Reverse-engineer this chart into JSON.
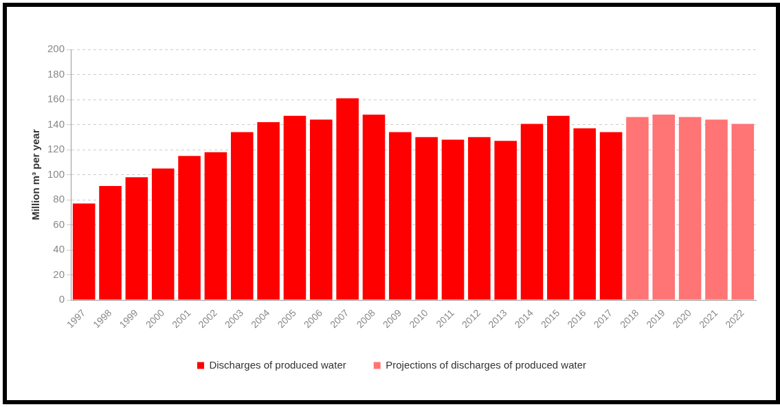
{
  "chart_data": {
    "type": "bar",
    "ylabel": "Million m³ per year",
    "categories": [
      "1997",
      "1998",
      "1999",
      "2000",
      "2001",
      "2002",
      "2003",
      "2004",
      "2005",
      "2006",
      "2007",
      "2008",
      "2009",
      "2010",
      "2011",
      "2012",
      "2013",
      "2014",
      "2015",
      "2016",
      "2017",
      "2018",
      "2019",
      "2020",
      "2021",
      "2022"
    ],
    "series": [
      {
        "name": "Discharges of produced water",
        "color": "#ff0000",
        "values": [
          77,
          91,
          98,
          105,
          115,
          118,
          134,
          142,
          147,
          144,
          161,
          148,
          134,
          130,
          128,
          130,
          127,
          140.5,
          147,
          137,
          134,
          null,
          null,
          null,
          null,
          null
        ]
      },
      {
        "name": "Projections of discharges of produced water",
        "color": "#ff7474",
        "values": [
          null,
          null,
          null,
          null,
          null,
          null,
          null,
          null,
          null,
          null,
          null,
          null,
          null,
          null,
          null,
          null,
          null,
          null,
          null,
          null,
          null,
          146,
          148,
          146,
          144,
          140.5
        ]
      }
    ],
    "ylim": [
      0,
      200
    ],
    "yticks": [
      0,
      20,
      40,
      60,
      80,
      100,
      120,
      140,
      160,
      180,
      200
    ],
    "grid": "y",
    "legend": "bottom"
  }
}
